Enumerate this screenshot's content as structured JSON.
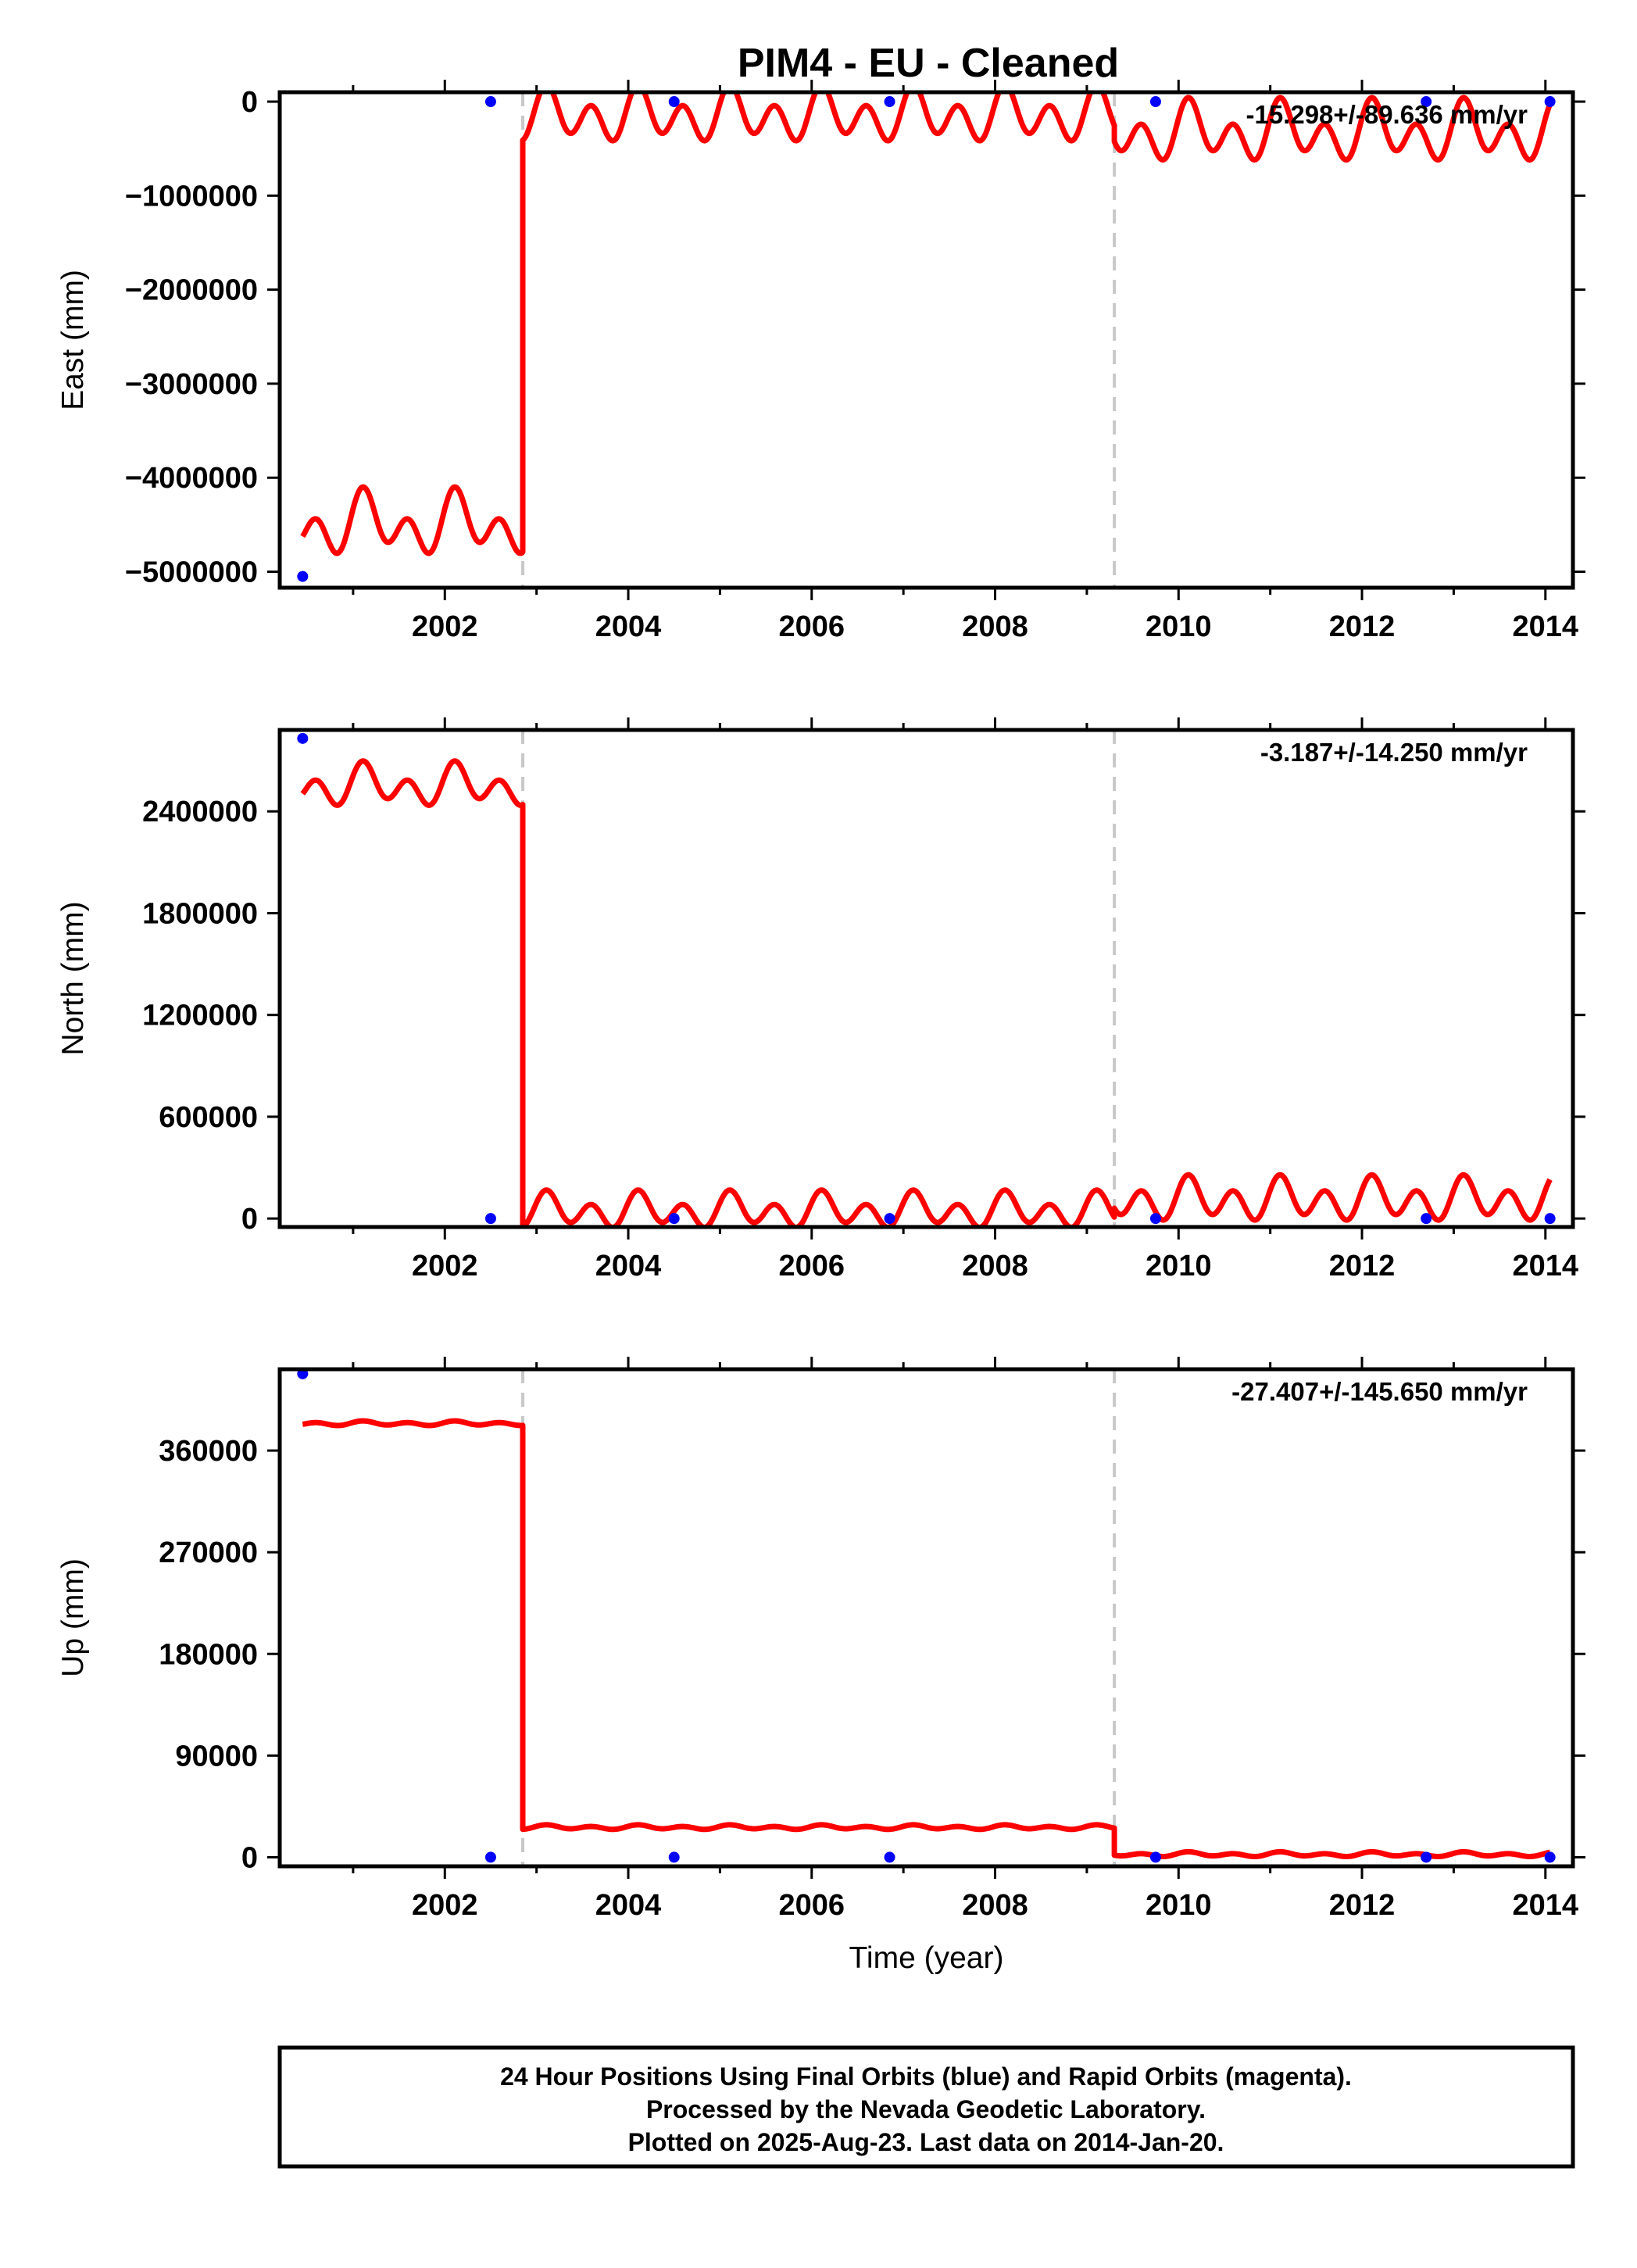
{
  "chart_data": {
    "type": "line",
    "title": "PIM4  - EU - Cleaned",
    "xlabel": "Time (year)",
    "x_ticks": [
      2002,
      2004,
      2006,
      2008,
      2010,
      2012,
      2014
    ],
    "xlim": [
      2000.2,
      2014.3
    ],
    "offset_lines_x": [
      2002.85,
      2009.3
    ],
    "colors": {
      "model": "#ff0000",
      "final_orbits": "#0000ff",
      "offset_lines": "#c8c8c8",
      "axes": "#000000"
    },
    "panels": [
      {
        "ylabel": "East (mm)",
        "rate": "-15.298+/-89.636 mm/yr",
        "ylim": [
          -5170000,
          100000
        ],
        "y_ticks": [
          0,
          -1000000,
          -2000000,
          -3000000,
          -4000000,
          -5000000
        ],
        "y_tick_labels": [
          "0",
          "−1000000",
          "−2000000",
          "−3000000",
          "−4000000",
          "−5000000"
        ],
        "final_orbit_points": [
          {
            "x": 2000.45,
            "y": -5050000
          },
          {
            "x": 2002.5,
            "y": 0
          },
          {
            "x": 2004.5,
            "y": 0
          },
          {
            "x": 2006.85,
            "y": 0
          },
          {
            "x": 2009.75,
            "y": 0
          },
          {
            "x": 2012.7,
            "y": 0
          },
          {
            "x": 2014.05,
            "y": 0
          }
        ],
        "model_segments": [
          {
            "x_start": 2000.45,
            "x_end": 2002.85,
            "mean": -4500000,
            "annual_amp": 180000,
            "semiannual_amp": 230000
          },
          {
            "x_start": 2002.85,
            "x_end": 2009.3,
            "mean": -150000,
            "annual_amp": 120000,
            "semiannual_amp": 220000
          },
          {
            "x_start": 2009.3,
            "x_end": 2014.05,
            "mean": -330000,
            "annual_amp": 150000,
            "semiannual_amp": 230000
          }
        ]
      },
      {
        "ylabel": "North (mm)",
        "rate": "-3.187+/-14.250 mm/yr",
        "ylim": [
          -50000,
          2880000
        ],
        "y_ticks": [
          0,
          600000,
          1200000,
          1800000,
          2400000
        ],
        "y_tick_labels": [
          "0",
          "600000",
          "1200000",
          "1800000",
          "2400000"
        ],
        "final_orbit_points": [
          {
            "x": 2000.45,
            "y": 2830000
          },
          {
            "x": 2002.5,
            "y": 0
          },
          {
            "x": 2004.5,
            "y": 0
          },
          {
            "x": 2006.85,
            "y": 0
          },
          {
            "x": 2009.75,
            "y": 0
          },
          {
            "x": 2012.7,
            "y": 0
          },
          {
            "x": 2014.05,
            "y": 0
          }
        ],
        "model_segments": [
          {
            "x_start": 2000.45,
            "x_end": 2002.85,
            "mean": 2550000,
            "annual_amp": 60000,
            "semiannual_amp": 90000
          },
          {
            "x_start": 2002.85,
            "x_end": 2009.3,
            "mean": 45000,
            "annual_amp": 45000,
            "semiannual_amp": 80000
          },
          {
            "x_start": 2009.3,
            "x_end": 2014.05,
            "mean": 110000,
            "annual_amp": 50000,
            "semiannual_amp": 100000
          }
        ]
      },
      {
        "ylabel": "Up (mm)",
        "rate": "-27.407+/-145.650 mm/yr",
        "ylim": [
          -8000,
          432000
        ],
        "y_ticks": [
          0,
          90000,
          180000,
          270000,
          360000
        ],
        "y_tick_labels": [
          "0",
          "90000",
          "180000",
          "270000",
          "360000"
        ],
        "final_orbit_points": [
          {
            "x": 2000.45,
            "y": 428000
          },
          {
            "x": 2002.5,
            "y": 0
          },
          {
            "x": 2004.5,
            "y": 0
          },
          {
            "x": 2006.85,
            "y": 0
          },
          {
            "x": 2009.75,
            "y": 0
          },
          {
            "x": 2012.7,
            "y": 0
          },
          {
            "x": 2014.05,
            "y": 0
          }
        ],
        "model_segments": [
          {
            "x_start": 2000.45,
            "x_end": 2002.85,
            "mean": 384000,
            "annual_amp": 800,
            "semiannual_amp": 1500
          },
          {
            "x_start": 2002.85,
            "x_end": 2009.3,
            "mean": 26500,
            "annual_amp": 800,
            "semiannual_amp": 1500
          },
          {
            "x_start": 2009.3,
            "x_end": 2014.05,
            "mean": 2500,
            "annual_amp": 900,
            "semiannual_amp": 1500
          }
        ]
      }
    ]
  },
  "footer": {
    "line1": "24 Hour Positions Using Final Orbits (blue) and Rapid Orbits (magenta).",
    "line2": "Processed by the Nevada Geodetic Laboratory.",
    "line3": "Plotted on 2025-Aug-23. Last data on 2014-Jan-20."
  }
}
